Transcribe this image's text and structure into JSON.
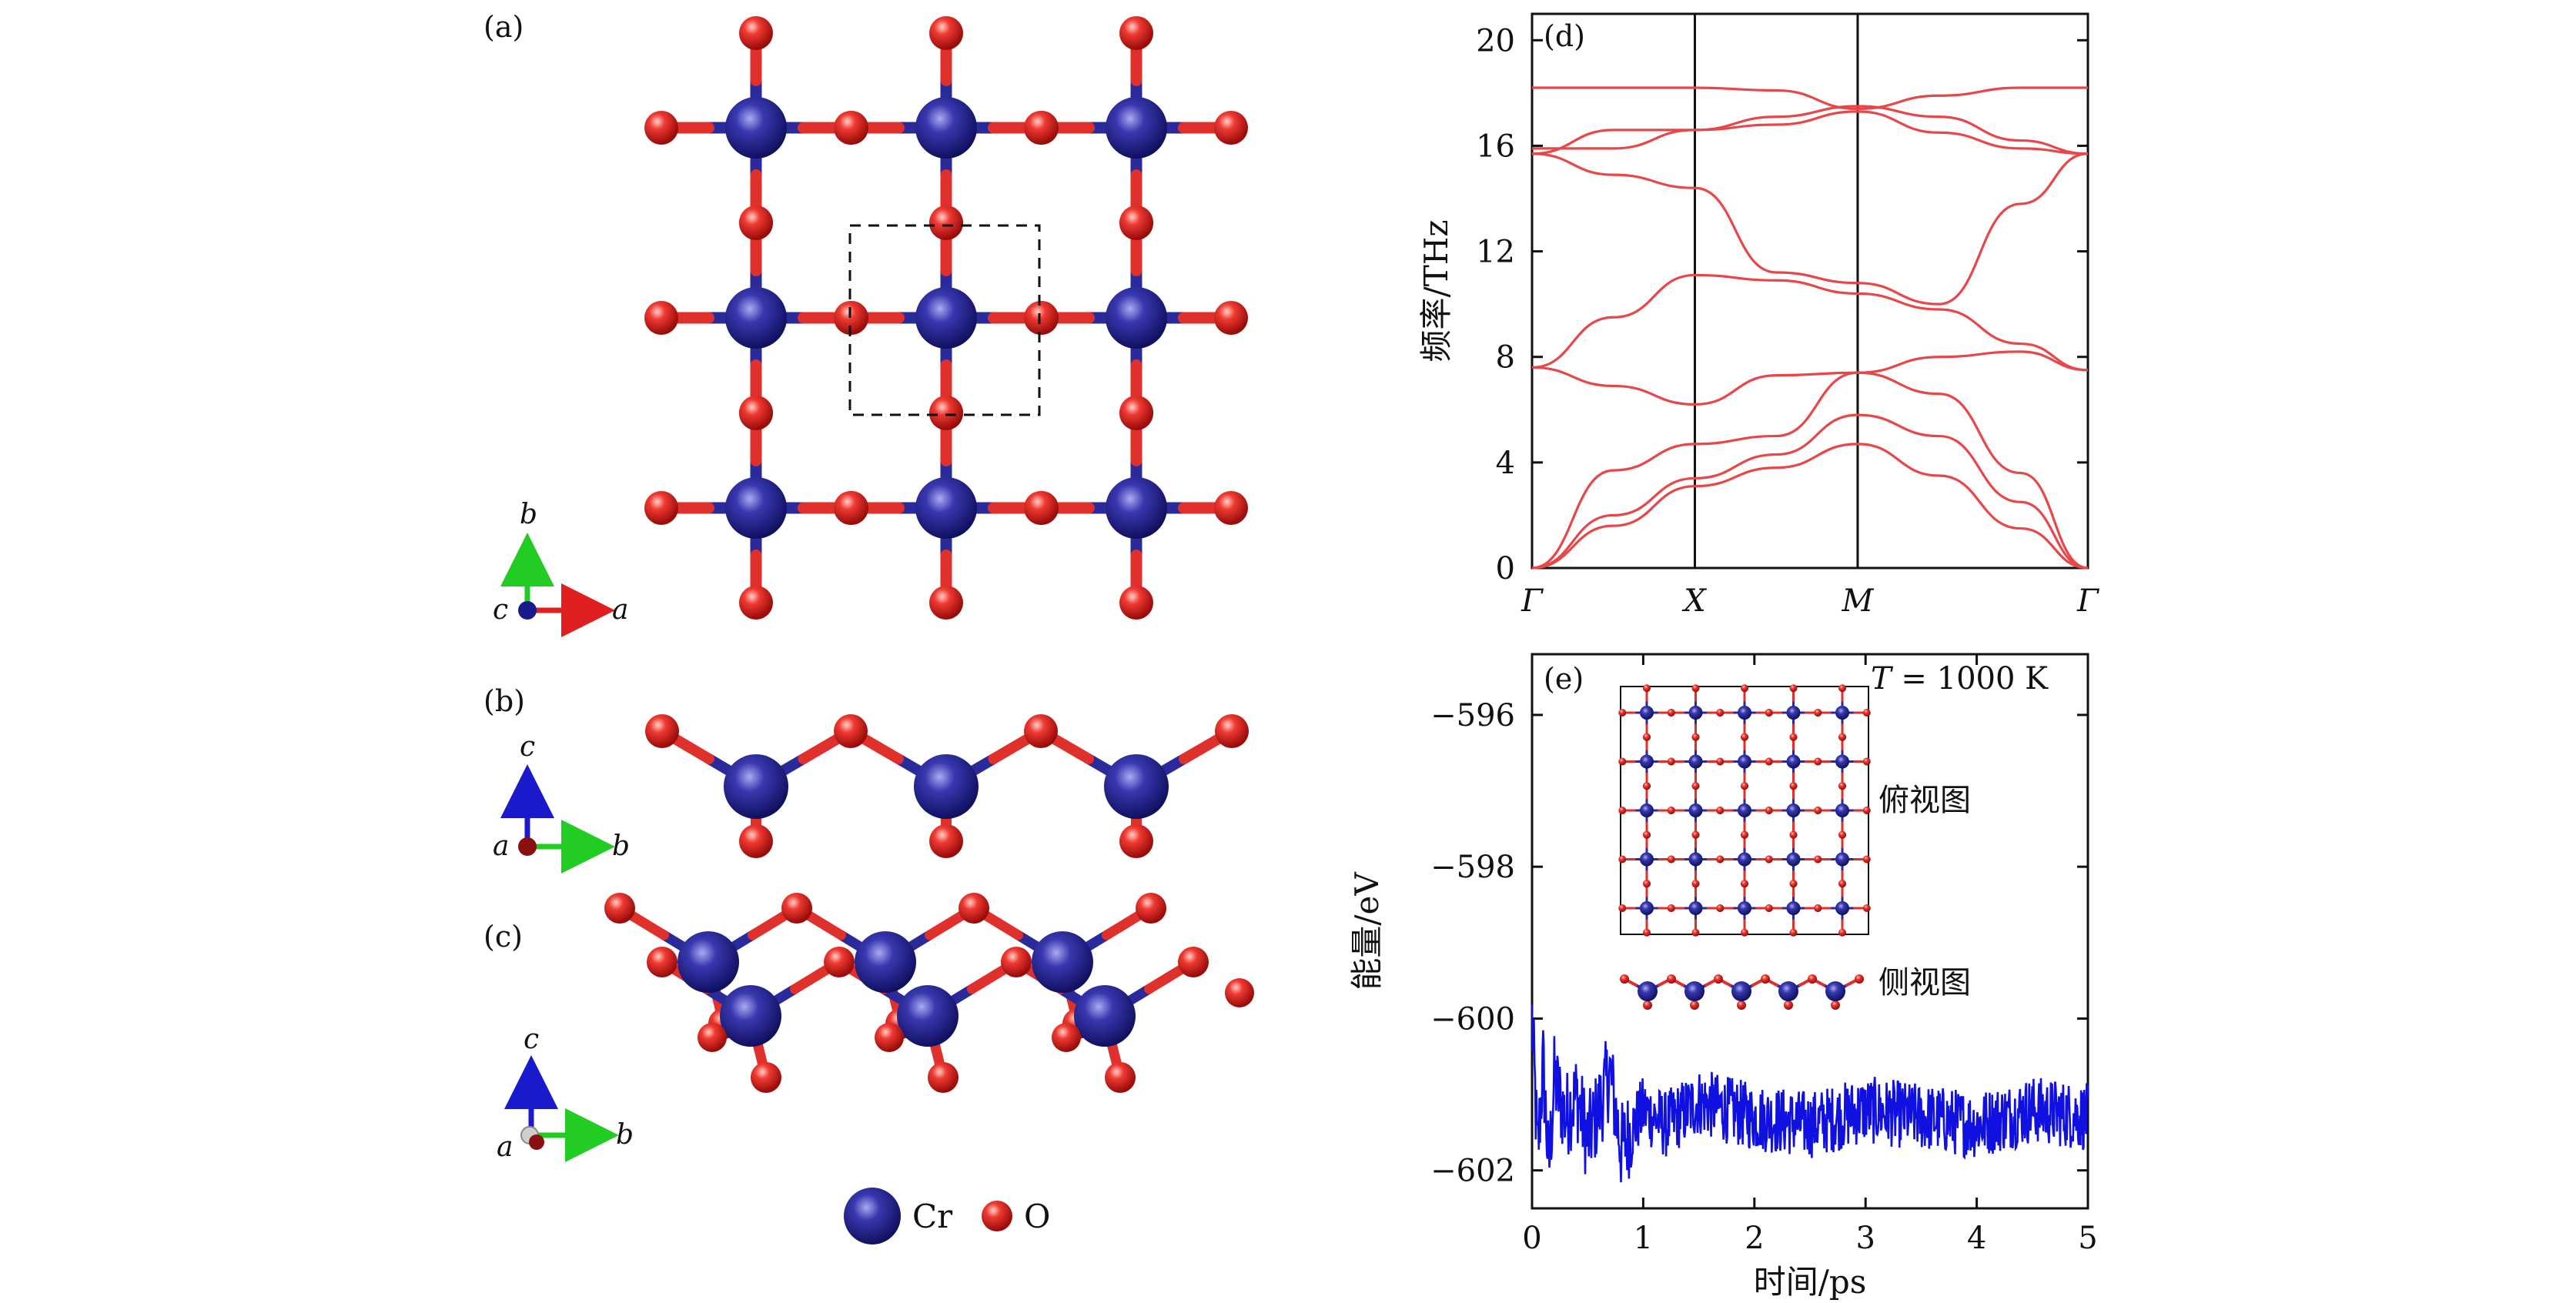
{
  "panels": {
    "a": {
      "label": "(a)",
      "axes": {
        "h": "a",
        "v": "b",
        "center": "c"
      }
    },
    "b": {
      "label": "(b)",
      "axes": {
        "h": "b",
        "v": "c",
        "center": "a"
      }
    },
    "c": {
      "label": "(c)",
      "axes": {
        "h": "b",
        "v": "c",
        "center": "a"
      }
    },
    "d": {
      "label": "(d)"
    },
    "e": {
      "label": "(e)"
    }
  },
  "legend": {
    "items": [
      {
        "label": "Cr",
        "color": "#2a2a9a"
      },
      {
        "label": "O",
        "color": "#e0302c"
      }
    ]
  },
  "colors": {
    "cr": "#2a2a9a",
    "o": "#e0302c",
    "band": "#e8474a",
    "energy": "#1010e0"
  },
  "chart_data": [
    {
      "type": "line",
      "panel": "(d)",
      "xlabel": "",
      "ylabel": "频率/THz",
      "ylim": [
        0,
        21
      ],
      "yticks": [
        "0",
        "4",
        "8",
        "12",
        "16",
        "20"
      ],
      "kpoints": [
        "Γ",
        "X",
        "M",
        "Γ"
      ],
      "kpoint_positions": [
        0,
        1,
        2,
        3.414
      ],
      "zero_line": "dashed",
      "series": [
        {
          "x": [
            0,
            0.5,
            1,
            1.5,
            2,
            2.5,
            3,
            3.414
          ],
          "values": [
            0,
            1.6,
            3.1,
            3.8,
            4.7,
            3.5,
            1.5,
            0
          ]
        },
        {
          "x": [
            0,
            0.5,
            1,
            1.5,
            2,
            2.5,
            3,
            3.414
          ],
          "values": [
            0,
            2.0,
            3.4,
            4.3,
            5.8,
            5.0,
            2.5,
            0
          ]
        },
        {
          "x": [
            0,
            0.5,
            1,
            1.5,
            2,
            2.5,
            3,
            3.414
          ],
          "values": [
            0,
            3.7,
            4.7,
            5.0,
            7.4,
            6.6,
            3.6,
            0
          ]
        },
        {
          "x": [
            0,
            0.5,
            1,
            1.5,
            2,
            2.5,
            3,
            3.414
          ],
          "values": [
            7.6,
            6.9,
            6.2,
            7.3,
            7.4,
            8.0,
            8.2,
            7.5
          ]
        },
        {
          "x": [
            0,
            0.5,
            1,
            1.5,
            2,
            2.5,
            3,
            3.414
          ],
          "values": [
            7.6,
            9.5,
            11.1,
            10.9,
            10.4,
            9.8,
            8.5,
            7.5
          ]
        },
        {
          "x": [
            0,
            0.5,
            1,
            1.5,
            2,
            2.5,
            3,
            3.414
          ],
          "values": [
            15.7,
            14.9,
            14.4,
            11.2,
            10.8,
            10.0,
            13.8,
            15.7
          ]
        },
        {
          "x": [
            0,
            0.5,
            1,
            1.5,
            2,
            2.5,
            3,
            3.414
          ],
          "values": [
            15.7,
            16.6,
            16.6,
            16.8,
            17.3,
            16.5,
            15.9,
            15.7
          ]
        },
        {
          "x": [
            0,
            0.5,
            1,
            1.5,
            2,
            2.5,
            3,
            3.414
          ],
          "values": [
            15.9,
            15.9,
            16.6,
            17.1,
            17.5,
            17.1,
            16.2,
            15.7
          ]
        },
        {
          "x": [
            0,
            0.5,
            1,
            1.5,
            2,
            2.5,
            3,
            3.414
          ],
          "values": [
            18.2,
            18.2,
            18.2,
            18.1,
            17.4,
            17.9,
            18.2,
            18.2
          ]
        }
      ]
    },
    {
      "type": "line",
      "panel": "(e)",
      "xlabel": "时间/ps",
      "ylabel": "能量/eV",
      "xlim": [
        0,
        5
      ],
      "ylim": [
        -602.5,
        -595.2
      ],
      "xticks": [
        "0",
        "1",
        "2",
        "3",
        "4",
        "5"
      ],
      "yticks": [
        "−596",
        "−598",
        "−600",
        "−602"
      ],
      "series": [
        {
          "x": [
            0,
            0.05,
            0.1,
            0.15,
            0.2,
            0.3,
            0.4,
            0.5,
            0.6,
            0.7,
            0.8,
            1.0,
            1.2,
            1.5,
            2.0,
            2.5,
            3.0,
            3.5,
            4.0,
            4.5,
            5.0
          ],
          "values": [
            -600.0,
            -601.8,
            -600.6,
            -602.0,
            -600.8,
            -601.3,
            -601.0,
            -601.6,
            -601.2,
            -600.7,
            -601.7,
            -601.2,
            -601.4,
            -601.1,
            -601.3,
            -601.4,
            -601.2,
            -601.3,
            -601.4,
            -601.2,
            -601.3
          ]
        }
      ]
    }
  ],
  "inset": {
    "top_label": "俯视图",
    "side_label": "侧视图",
    "temperature_symbol": "T",
    "temperature_value": " = 1000 K"
  }
}
